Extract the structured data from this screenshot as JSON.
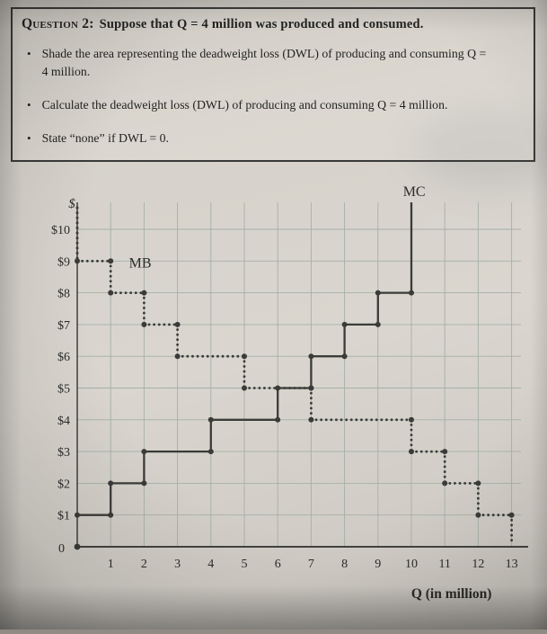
{
  "question_box": {
    "title_label": "Question 2:",
    "title_text": "Suppose that Q = 4 million was produced and consumed.",
    "bullet_char": "•",
    "bullets": [
      "Shade the area representing the deadweight loss (DWL) of producing and consuming Q = 4 million.",
      "Calculate the deadweight loss (DWL) of producing and consuming Q = 4 million.",
      "State “none” if DWL = 0."
    ]
  },
  "chart_data": {
    "type": "line",
    "subtype": "step-functions",
    "title": "",
    "xlabel": "Q (in million)",
    "ylabel": "$",
    "origin_label": "0",
    "xlim": [
      0,
      13
    ],
    "ylim": [
      0,
      11
    ],
    "grid": true,
    "x_ticks": [
      "1",
      "2",
      "3",
      "4",
      "5",
      "6",
      "7",
      "8",
      "9",
      "10",
      "11",
      "12",
      "13"
    ],
    "y_ticks": [
      "$10",
      "$9",
      "$8",
      "$7",
      "$6",
      "$5",
      "$4",
      "$3",
      "$2",
      "$1"
    ],
    "line_color": "#3b3b39",
    "grid_color": "#a6b0a6",
    "series": [
      {
        "name": "MC",
        "style": "solid",
        "label_pos": {
          "x": 9.75,
          "y": 11.05
        },
        "steps": [
          {
            "x0": 0,
            "x1": 1,
            "y": 1
          },
          {
            "x0": 1,
            "x1": 2,
            "y": 2
          },
          {
            "x0": 2,
            "x1": 4,
            "y": 3
          },
          {
            "x0": 4,
            "x1": 6,
            "y": 4
          },
          {
            "x0": 6,
            "x1": 7,
            "y": 5
          },
          {
            "x0": 7,
            "x1": 8,
            "y": 6
          },
          {
            "x0": 8,
            "x1": 9,
            "y": 7
          },
          {
            "x0": 9,
            "x1": 10,
            "y": 8
          }
        ],
        "end_vertical": {
          "x": 10,
          "y0": 8,
          "y1": 10.85
        }
      },
      {
        "name": "MB",
        "style": "dotted",
        "label_pos": {
          "x": 1.55,
          "y": 8.8
        },
        "steps": [
          {
            "x0": 0,
            "x1": 1,
            "y": 9
          },
          {
            "x0": 1,
            "x1": 2,
            "y": 8
          },
          {
            "x0": 2,
            "x1": 3,
            "y": 7
          },
          {
            "x0": 3,
            "x1": 5,
            "y": 6
          },
          {
            "x0": 5,
            "x1": 7,
            "y": 5
          },
          {
            "x0": 7,
            "x1": 10,
            "y": 4
          },
          {
            "x0": 10,
            "x1": 11,
            "y": 3
          },
          {
            "x0": 11,
            "x1": 12,
            "y": 2
          },
          {
            "x0": 12,
            "x1": 13,
            "y": 1
          }
        ],
        "end_vertical": {
          "x": 13,
          "y0": 1,
          "y1": 0.12
        }
      }
    ]
  }
}
